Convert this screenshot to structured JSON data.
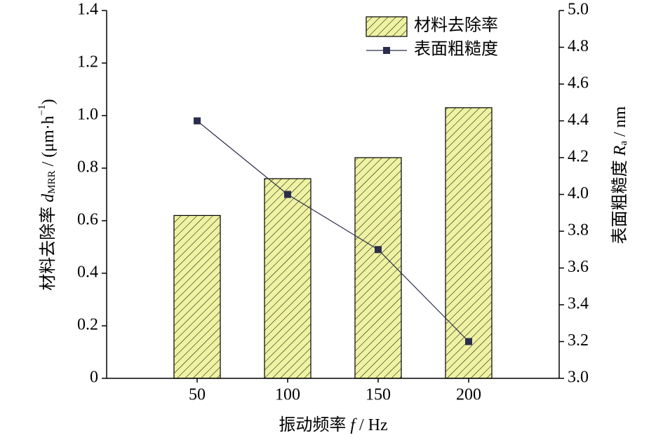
{
  "chart_data": {
    "type": "bar-line",
    "x": [
      50,
      100,
      150,
      200
    ],
    "xlim": [
      0,
      250
    ],
    "xticks": [
      50,
      100,
      150,
      200
    ],
    "xlabel": [
      "振动频率 ",
      "f",
      " / Hz"
    ],
    "ylabel": [
      "材料去除率 ",
      "d",
      "MRR",
      " / (μm·h",
      "−1",
      ")"
    ],
    "y2label": [
      "表面粗糙度 ",
      "R",
      "a",
      " / nm"
    ],
    "ylim": [
      0,
      1.4
    ],
    "yticks": [
      0,
      0.2,
      0.4,
      0.6,
      0.8,
      {
        "value": 1,
        "label": "1.0"
      },
      1.2,
      1.4
    ],
    "y2lim": [
      3,
      5
    ],
    "y2ticks": [
      {
        "value": 3,
        "label": "3.0"
      },
      3.2,
      3.4,
      3.6,
      3.8,
      {
        "value": 4,
        "label": "4.0"
      },
      4.2,
      4.4,
      4.6,
      4.8,
      {
        "value": 5,
        "label": "5.0"
      }
    ],
    "legend": "top-right",
    "series": [
      {
        "name": "材料去除率",
        "type": "bar",
        "color": "#eef2a2",
        "values": [
          0.62,
          0.76,
          0.84,
          1.03
        ]
      },
      {
        "name": "表面粗糙度",
        "type": "line",
        "axis": "y2",
        "color": "#2b2e4a",
        "values": [
          4.4,
          4.0,
          3.7,
          3.2
        ]
      }
    ]
  }
}
